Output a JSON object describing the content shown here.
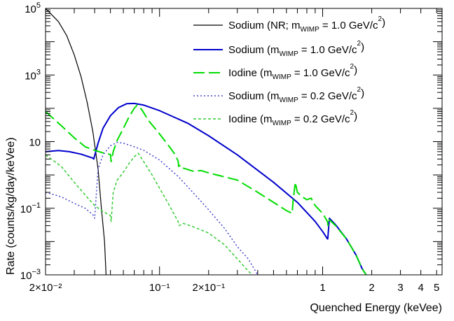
{
  "chart_data": {
    "type": "line",
    "title": "",
    "xlabel": "Quenched Energy (keVee)",
    "ylabel": "Rate (counts/kg/day/keVee)",
    "xscale": "log",
    "yscale": "log",
    "xlim": [
      0.02,
      5.4
    ],
    "ylim": [
      0.001,
      100000
    ],
    "grid": false,
    "legend_position": "top-right",
    "x_tick_labels": [
      {
        "value": 0.02,
        "label": "2×10⁻²"
      },
      {
        "value": 0.1,
        "label": "10⁻¹"
      },
      {
        "value": 0.2,
        "label": "2×10⁻¹"
      },
      {
        "value": 1,
        "label": "1"
      },
      {
        "value": 2,
        "label": "2"
      },
      {
        "value": 3,
        "label": "3"
      },
      {
        "value": 4,
        "label": "4"
      },
      {
        "value": 5,
        "label": "5"
      }
    ],
    "y_tick_labels": [
      {
        "value": 100000,
        "base": "10",
        "exp": "5"
      },
      {
        "value": 1000,
        "base": "10",
        "exp": "3"
      },
      {
        "value": 10,
        "base": "10",
        "exp": ""
      },
      {
        "value": 0.1,
        "base": "10",
        "exp": "−1"
      },
      {
        "value": 0.001,
        "base": "10",
        "exp": "−3"
      }
    ],
    "series": [
      {
        "legend_main": "Sodium (NR; m",
        "legend_sub": "WIMP",
        "legend_mid": " = 1.0 GeV/c",
        "legend_sup": "2",
        "legend_end": ")",
        "color": "#000000",
        "dash": "",
        "width": 1.2,
        "points": [
          [
            0.02,
            100000
          ],
          [
            0.024,
            40000
          ],
          [
            0.027,
            15000
          ],
          [
            0.03,
            4000
          ],
          [
            0.033,
            900
          ],
          [
            0.036,
            150
          ],
          [
            0.039,
            20
          ],
          [
            0.042,
            1.5
          ],
          [
            0.044,
            0.1
          ],
          [
            0.046,
            0.01
          ],
          [
            0.047,
            0.001
          ]
        ]
      },
      {
        "legend_main": "Sodium (m",
        "legend_sub": "WIMP",
        "legend_mid": " = 1.0 GeV/c",
        "legend_sup": "2",
        "legend_end": ")",
        "color": "#0000cc",
        "dash": "",
        "width": 2,
        "points": [
          [
            0.02,
            5
          ],
          [
            0.024,
            5.4
          ],
          [
            0.028,
            5
          ],
          [
            0.033,
            4.2
          ],
          [
            0.039,
            3.2
          ],
          [
            0.0395,
            3
          ],
          [
            0.042,
            9
          ],
          [
            0.045,
            25
          ],
          [
            0.05,
            60
          ],
          [
            0.056,
            105
          ],
          [
            0.063,
            138
          ],
          [
            0.07,
            140
          ],
          [
            0.08,
            125
          ],
          [
            0.1,
            85
          ],
          [
            0.15,
            35
          ],
          [
            0.2,
            15
          ],
          [
            0.3,
            4
          ],
          [
            0.5,
            0.6
          ],
          [
            0.7,
            0.15
          ],
          [
            0.9,
            0.04
          ],
          [
            1.0,
            0.02
          ],
          [
            1.07,
            0.012
          ],
          [
            1.075,
            0.012
          ],
          [
            1.1,
            0.05
          ],
          [
            1.2,
            0.032
          ],
          [
            1.4,
            0.012
          ],
          [
            1.6,
            0.004
          ],
          [
            1.75,
            0.0015
          ],
          [
            1.85,
            0.001
          ]
        ]
      },
      {
        "legend_main": "Iodine   (m",
        "legend_sub": "WIMP",
        "legend_mid": " = 1.0 GeV/c",
        "legend_sup": "2",
        "legend_end": ")",
        "color": "#00dd00",
        "dash": "16,6",
        "width": 2,
        "points": [
          [
            0.02,
            80
          ],
          [
            0.025,
            30
          ],
          [
            0.03,
            13
          ],
          [
            0.035,
            7
          ],
          [
            0.04,
            5.5
          ],
          [
            0.045,
            4.6
          ],
          [
            0.05,
            4.1
          ],
          [
            0.0505,
            2.5
          ],
          [
            0.052,
            5
          ],
          [
            0.055,
            11
          ],
          [
            0.06,
            25
          ],
          [
            0.065,
            55
          ],
          [
            0.07,
            100
          ],
          [
            0.073,
            125
          ],
          [
            0.078,
            90
          ],
          [
            0.085,
            45
          ],
          [
            0.1,
            17
          ],
          [
            0.115,
            7
          ],
          [
            0.125,
            4
          ],
          [
            0.13,
            2.6
          ],
          [
            0.131,
            1.8
          ],
          [
            0.135,
            2
          ],
          [
            0.14,
            1.6
          ],
          [
            0.16,
            1.3
          ],
          [
            0.18,
            1.35
          ],
          [
            0.2,
            1.15
          ],
          [
            0.3,
            0.7
          ],
          [
            0.4,
            0.3
          ],
          [
            0.5,
            0.15
          ],
          [
            0.6,
            0.085
          ],
          [
            0.65,
            0.07
          ],
          [
            0.66,
            0.18
          ],
          [
            0.68,
            0.6
          ],
          [
            0.7,
            0.3
          ],
          [
            0.75,
            0.22
          ],
          [
            0.8,
            0.18
          ],
          [
            0.85,
            0.2
          ],
          [
            0.9,
            0.12
          ],
          [
            1.0,
            0.07
          ],
          [
            1.07,
            0.04
          ],
          [
            1.08,
            0.03
          ],
          [
            1.1,
            0.045
          ],
          [
            1.2,
            0.03
          ],
          [
            1.4,
            0.012
          ],
          [
            1.6,
            0.004
          ],
          [
            1.75,
            0.0015
          ],
          [
            1.85,
            0.001
          ]
        ]
      },
      {
        "legend_main": "Sodium (m",
        "legend_sub": "WIMP",
        "legend_mid": " = 0.2 GeV/c",
        "legend_sup": "2",
        "legend_end": ")",
        "color": "#4444cc",
        "dash": "2,3",
        "width": 1.5,
        "points": [
          [
            0.02,
            0.3
          ],
          [
            0.025,
            0.22
          ],
          [
            0.03,
            0.14
          ],
          [
            0.035,
            0.1
          ],
          [
            0.0395,
            0.06
          ],
          [
            0.04,
            0.05
          ],
          [
            0.042,
            1.5
          ],
          [
            0.045,
            4
          ],
          [
            0.05,
            7.5
          ],
          [
            0.055,
            9.5
          ],
          [
            0.06,
            9
          ],
          [
            0.07,
            7
          ],
          [
            0.08,
            5.5
          ],
          [
            0.1,
            2.8
          ],
          [
            0.13,
            0.9
          ],
          [
            0.16,
            0.3
          ],
          [
            0.2,
            0.09
          ],
          [
            0.25,
            0.025
          ],
          [
            0.3,
            0.007
          ],
          [
            0.35,
            0.003
          ],
          [
            0.4,
            0.001
          ]
        ]
      },
      {
        "legend_main": "Iodine   (m",
        "legend_sub": "WIMP",
        "legend_mid": " = 0.2 GeV/c",
        "legend_sup": "2",
        "legend_end": ")",
        "color": "#33cc33",
        "dash": "4,3",
        "width": 1.5,
        "points": [
          [
            0.02,
            4
          ],
          [
            0.025,
            1.8
          ],
          [
            0.03,
            0.6
          ],
          [
            0.035,
            0.25
          ],
          [
            0.04,
            0.12
          ],
          [
            0.045,
            0.08
          ],
          [
            0.05,
            0.06
          ],
          [
            0.0505,
            0.04
          ],
          [
            0.052,
            0.3
          ],
          [
            0.055,
            0.7
          ],
          [
            0.06,
            1.2
          ],
          [
            0.065,
            2.2
          ],
          [
            0.07,
            3.5
          ],
          [
            0.074,
            4.5
          ],
          [
            0.08,
            2.5
          ],
          [
            0.09,
            1
          ],
          [
            0.1,
            0.4
          ],
          [
            0.115,
            0.12
          ],
          [
            0.13,
            0.04
          ],
          [
            0.132,
            0.03
          ],
          [
            0.14,
            0.035
          ],
          [
            0.16,
            0.028
          ],
          [
            0.2,
            0.018
          ],
          [
            0.25,
            0.008
          ],
          [
            0.3,
            0.003
          ],
          [
            0.35,
            0.0013
          ],
          [
            0.37,
            0.001
          ]
        ]
      }
    ]
  }
}
